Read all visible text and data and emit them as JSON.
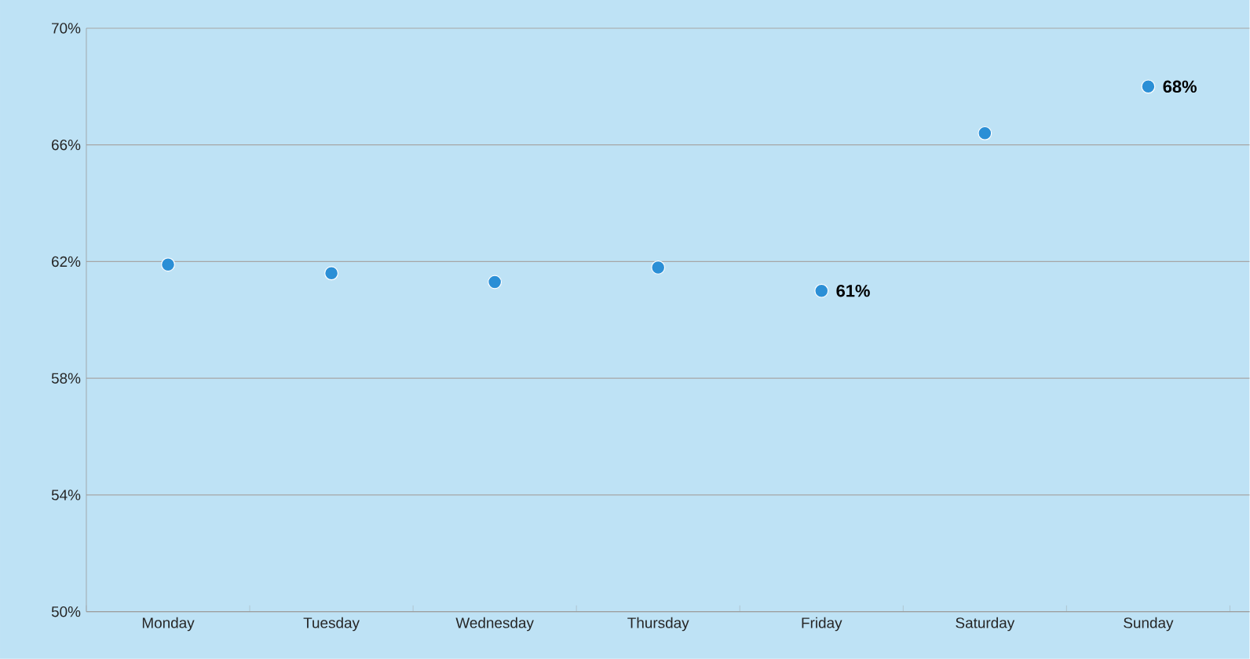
{
  "chart_data": {
    "type": "scatter",
    "categories": [
      "Monday",
      "Tuesday",
      "Wednesday",
      "Thursday",
      "Friday",
      "Saturday",
      "Sunday"
    ],
    "series": [
      {
        "color": "#2b8fd6",
        "values": [
          61.9,
          61.6,
          61.3,
          61.8,
          61,
          66.4,
          68
        ],
        "value_labels": [
          null,
          null,
          null,
          null,
          "61%",
          null,
          "68%"
        ]
      }
    ],
    "ylim": [
      50,
      70
    ],
    "yticks": [
      {
        "value": 50,
        "label": "50%"
      },
      {
        "value": 54,
        "label": "54%"
      },
      {
        "value": 58,
        "label": "58%"
      },
      {
        "value": 62,
        "label": "62%"
      },
      {
        "value": 66,
        "label": "66%"
      },
      {
        "value": 70,
        "label": "70%"
      }
    ],
    "grid": "y",
    "marker": "circle"
  }
}
